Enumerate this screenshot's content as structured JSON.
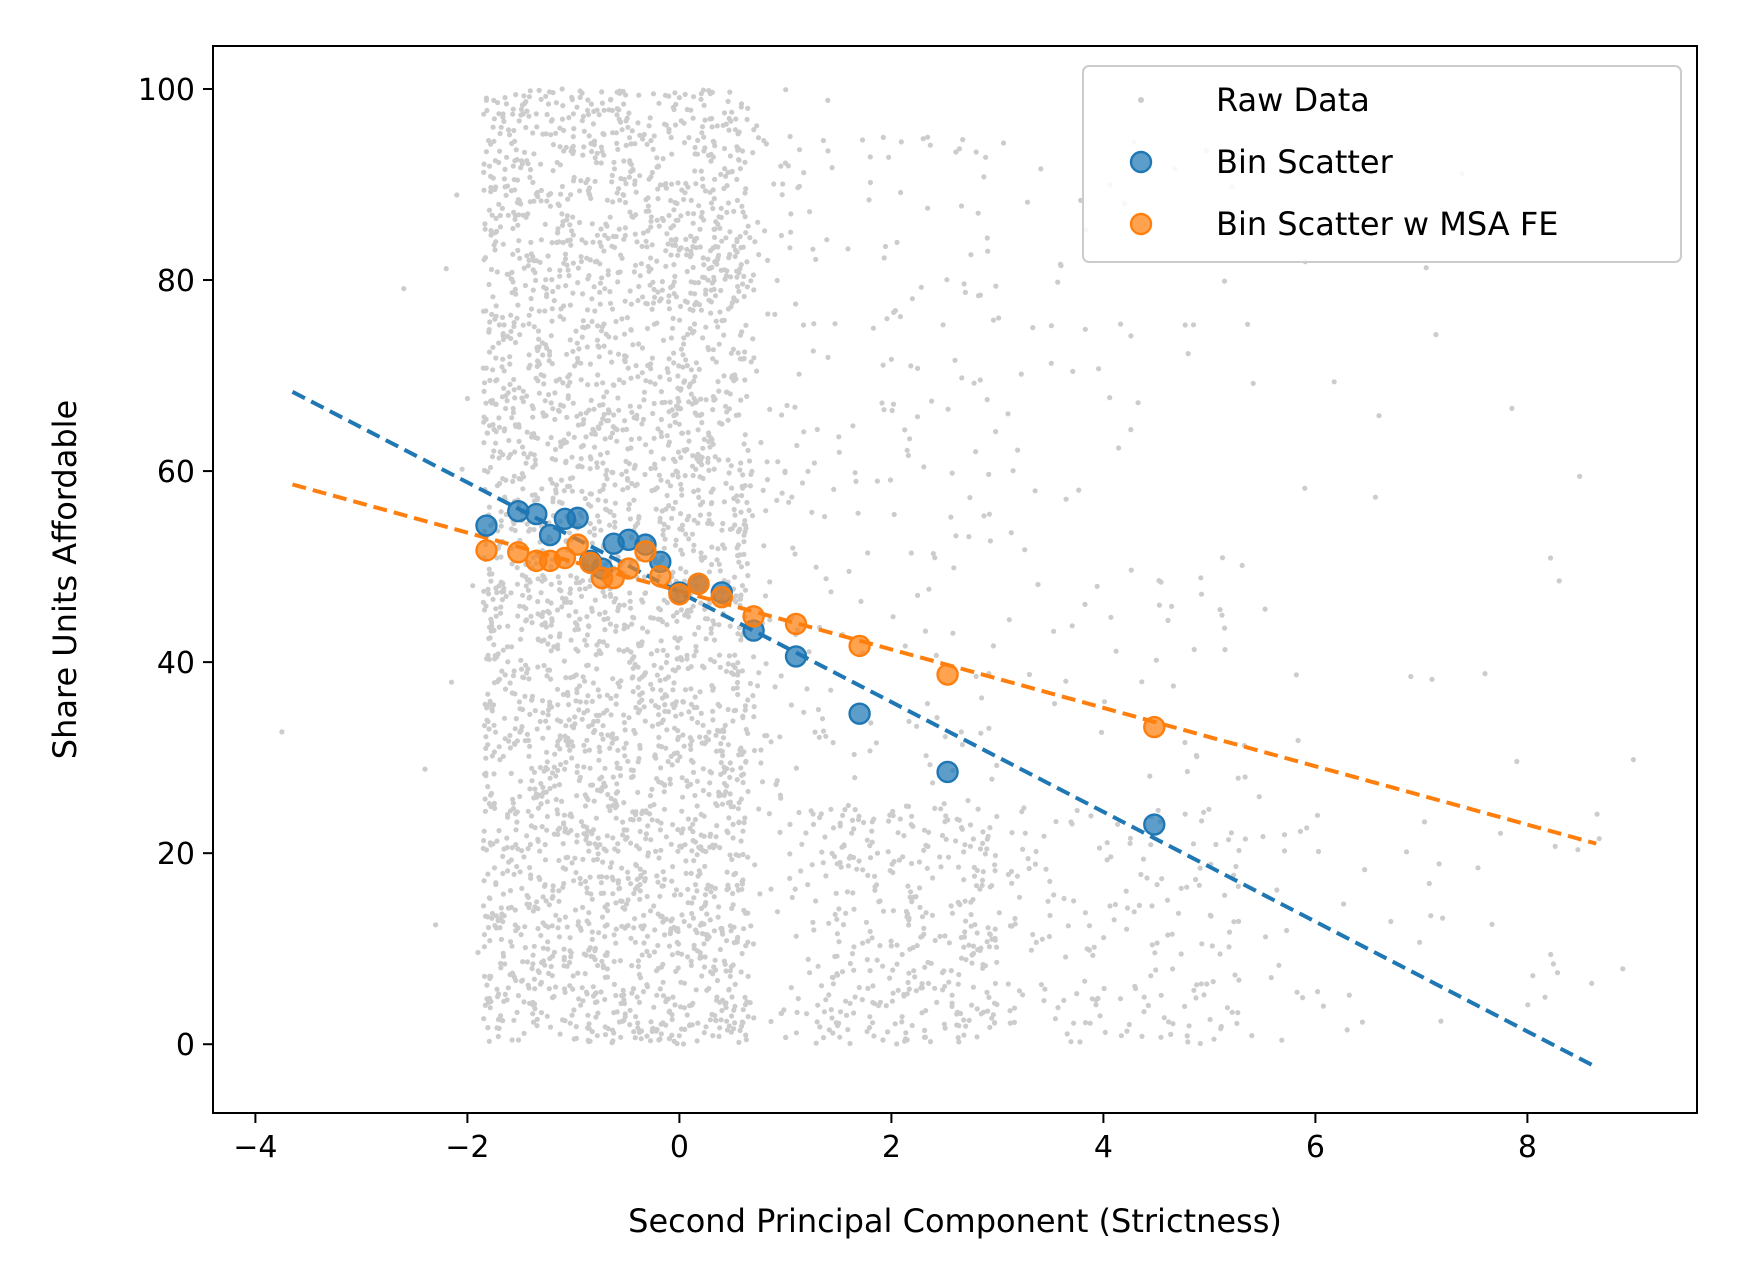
{
  "chart_data": {
    "type": "scatter",
    "xlabel": "Second Principal Component (Strictness)",
    "ylabel": "Share Units Affordable",
    "xlim": [
      -4.4,
      9.6
    ],
    "ylim": [
      -7.2,
      104.5
    ],
    "x_ticks": [
      -4,
      -2,
      0,
      2,
      4,
      6,
      8
    ],
    "x_tick_labels": [
      "−4",
      "−2",
      "0",
      "2",
      "4",
      "6",
      "8"
    ],
    "y_ticks": [
      0,
      20,
      40,
      60,
      80,
      100
    ],
    "y_tick_labels": [
      "0",
      "20",
      "40",
      "60",
      "80",
      "100"
    ],
    "grid": false,
    "legend": {
      "position": "top-right",
      "entries": [
        "Raw Data",
        "Bin Scatter",
        "Bin Scatter w MSA FE"
      ]
    },
    "colors": {
      "raw": "#cccccc",
      "bin": "#1f77b4",
      "bin_fe": "#ff7f0e"
    },
    "raw_data_sample": [
      [
        -3.75,
        32.7
      ],
      [
        -2.6,
        79.1
      ],
      [
        -2.4,
        28.8
      ],
      [
        -2.3,
        12.5
      ],
      [
        -2.2,
        81.2
      ],
      [
        -2.15,
        37.9
      ],
      [
        -2.1,
        88.9
      ],
      [
        -2.05,
        60.2
      ],
      [
        -2.0,
        67.6
      ],
      [
        -1.95,
        48.0
      ],
      [
        -1.9,
        9.6
      ],
      [
        -1.85,
        20.5
      ],
      [
        -1.8,
        94.6
      ],
      [
        -1.6,
        71.2
      ],
      [
        -1.4,
        44.8
      ],
      [
        -1.2,
        15.3
      ],
      [
        -1.0,
        97.4
      ],
      [
        -0.8,
        62.5
      ],
      [
        -0.6,
        5.1
      ],
      [
        -0.4,
        84.0
      ],
      [
        -0.2,
        33.5
      ],
      [
        0.0,
        99.1
      ],
      [
        0.3,
        57.8
      ],
      [
        0.6,
        22.3
      ],
      [
        0.9,
        76.4
      ],
      [
        1.2,
        3.2
      ],
      [
        1.4,
        98.8
      ],
      [
        1.6,
        49.5
      ],
      [
        1.8,
        11.8
      ],
      [
        2.0,
        71.7
      ],
      [
        2.3,
        94.8
      ],
      [
        2.5,
        2.1
      ],
      [
        2.8,
        93.4
      ],
      [
        3.1,
        66.0
      ],
      [
        3.3,
        18.4
      ],
      [
        3.6,
        81.5
      ],
      [
        3.9,
        9.3
      ],
      [
        4.2,
        88.0
      ],
      [
        4.5,
        40.2
      ],
      [
        4.8,
        72.3
      ],
      [
        5.1,
        45.5
      ],
      [
        5.4,
        0.9
      ],
      [
        5.9,
        58.2
      ],
      [
        6.3,
        1.5
      ],
      [
        6.6,
        65.8
      ],
      [
        6.9,
        38.5
      ],
      [
        7.1,
        38.2
      ],
      [
        7.2,
        13.2
      ],
      [
        7.6,
        38.8
      ],
      [
        7.9,
        29.6
      ],
      [
        8.3,
        48.5
      ],
      [
        8.9,
        7.9
      ],
      [
        9.0,
        29.8
      ]
    ],
    "series": [
      {
        "name": "Bin Scatter",
        "x": [
          -1.82,
          -1.52,
          -1.35,
          -1.22,
          -1.08,
          -0.96,
          -0.84,
          -0.73,
          -0.62,
          -0.48,
          -0.32,
          -0.18,
          0.0,
          0.18,
          0.4,
          0.7,
          1.1,
          1.7,
          2.53,
          4.48
        ],
        "y": [
          54.3,
          55.8,
          55.5,
          53.3,
          55.0,
          55.1,
          50.6,
          49.8,
          52.4,
          52.8,
          52.3,
          50.5,
          47.3,
          48.2,
          47.3,
          43.3,
          40.6,
          34.6,
          28.5,
          23.0
        ]
      },
      {
        "name": "Bin Scatter w MSA FE",
        "x": [
          -1.82,
          -1.52,
          -1.35,
          -1.22,
          -1.08,
          -0.96,
          -0.84,
          -0.73,
          -0.62,
          -0.48,
          -0.32,
          -0.18,
          0.0,
          0.18,
          0.4,
          0.7,
          1.1,
          1.7,
          2.53,
          4.48
        ],
        "y": [
          51.7,
          51.5,
          50.6,
          50.6,
          50.9,
          52.3,
          50.4,
          48.8,
          48.8,
          49.8,
          51.6,
          49.0,
          47.1,
          48.2,
          46.8,
          44.8,
          44.0,
          41.7,
          38.7,
          33.2
        ]
      }
    ],
    "fit_lines": [
      {
        "series": "Bin Scatter",
        "x": [
          -3.65,
          8.65
        ],
        "y": [
          68.3,
          -2.4
        ]
      },
      {
        "series": "Bin Scatter w MSA FE",
        "x": [
          -3.65,
          8.65
        ],
        "y": [
          58.6,
          21.0
        ]
      }
    ]
  }
}
